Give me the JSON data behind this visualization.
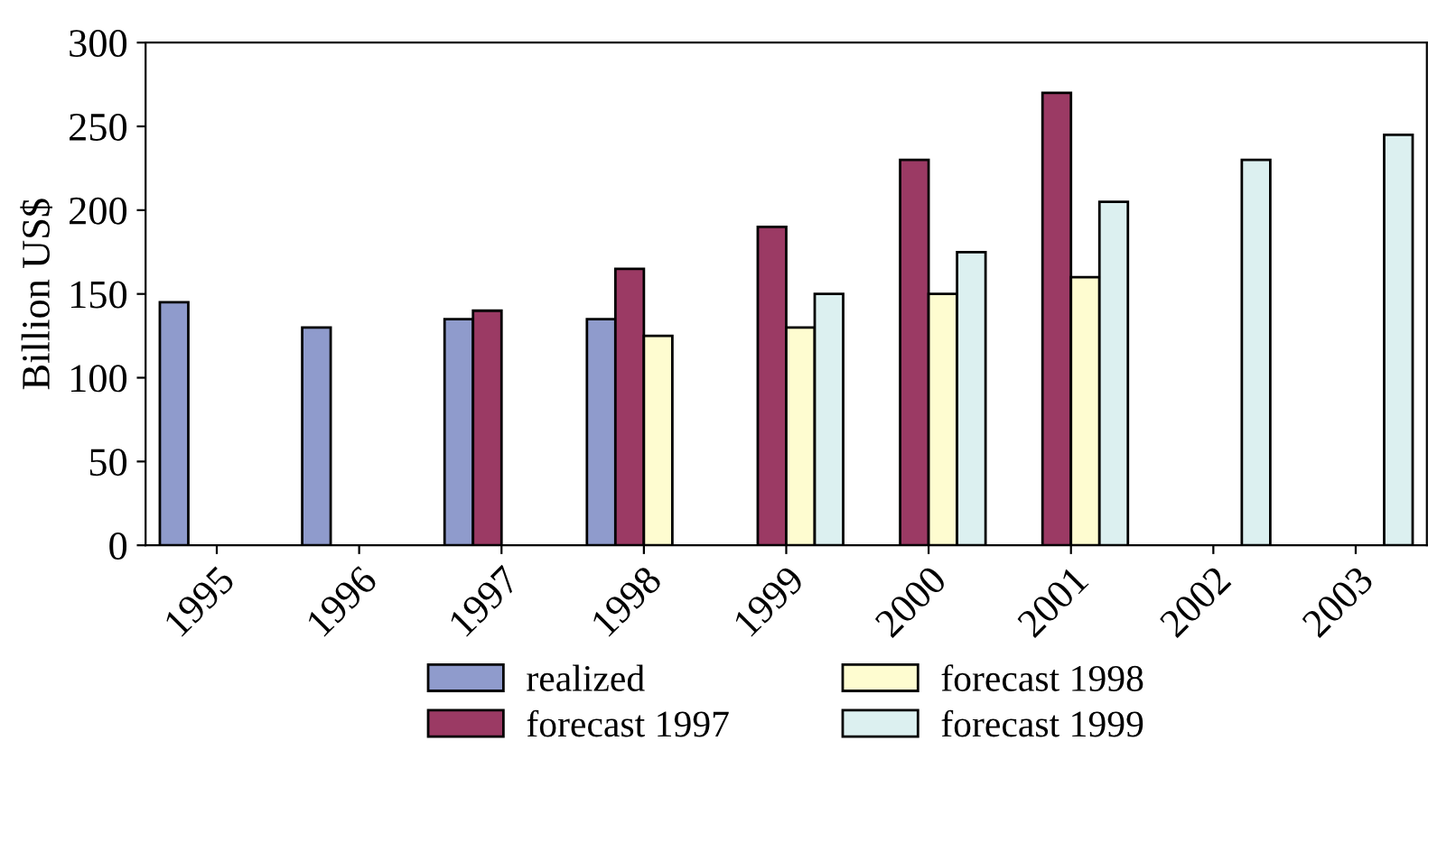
{
  "chart_data": {
    "type": "bar",
    "ylabel": "Billion US$",
    "categories": [
      "1995",
      "1996",
      "1997",
      "1998",
      "1999",
      "2000",
      "2001",
      "2002",
      "2003"
    ],
    "series": [
      {
        "name": "realized",
        "color": "#8f9bcc",
        "values": [
          145,
          130,
          135,
          135,
          null,
          null,
          null,
          null,
          null
        ]
      },
      {
        "name": "forecast 1997",
        "color": "#9b3a64",
        "values": [
          null,
          null,
          140,
          165,
          190,
          230,
          270,
          null,
          null
        ]
      },
      {
        "name": "forecast 1998",
        "color": "#fefcd0",
        "values": [
          null,
          null,
          null,
          125,
          130,
          150,
          160,
          null,
          null
        ]
      },
      {
        "name": "forecast 1999",
        "color": "#dcf0f0",
        "values": [
          null,
          null,
          null,
          null,
          150,
          175,
          205,
          230,
          245
        ]
      }
    ],
    "ylim": [
      0,
      300
    ],
    "yticks": [
      0,
      50,
      100,
      150,
      200,
      250,
      300
    ],
    "grid": false,
    "legend": "bottom"
  }
}
